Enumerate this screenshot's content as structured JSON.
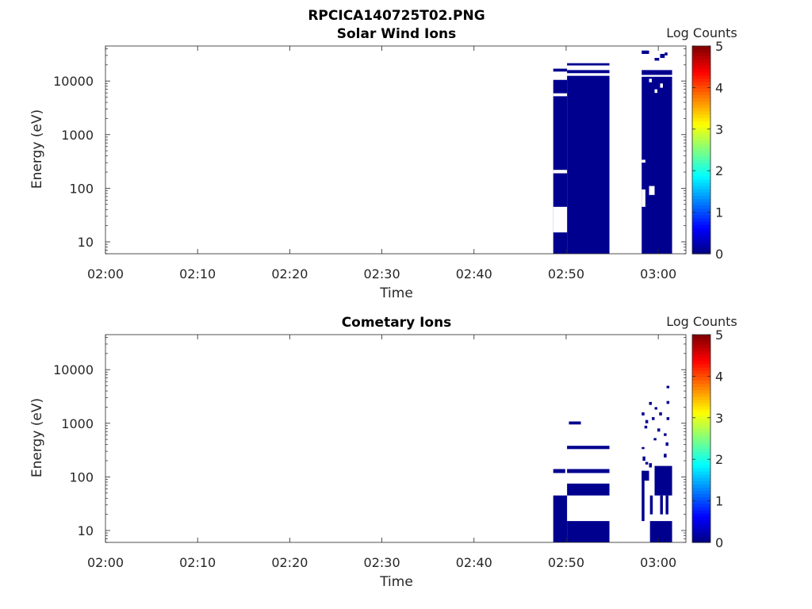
{
  "figure_title": "RPCICA140725T02.PNG",
  "chart_data": [
    {
      "type": "heatmap",
      "title": "Solar Wind Ions",
      "xlabel": "Time",
      "ylabel": "Energy (eV)",
      "x_ticks": [
        "02:00",
        "02:10",
        "02:20",
        "02:30",
        "02:40",
        "02:50",
        "03:00"
      ],
      "y_ticks": [
        "10",
        "100",
        "1000",
        "10000"
      ],
      "y_scale": "log",
      "ylim": [
        6,
        45000
      ],
      "xlim": [
        "02:00",
        "03:03"
      ],
      "colorbar": {
        "label": "Log Counts",
        "ticks": [
          "0",
          "1",
          "2",
          "3",
          "4",
          "5"
        ],
        "range": [
          0,
          5
        ],
        "colormap": "jet"
      },
      "data_color": "#00008f",
      "cells": [
        {
          "t_start": "02:48.6",
          "t_end": "02:50.1",
          "e_low": 6,
          "e_high": 10500
        },
        {
          "t_start": "02:50.1",
          "t_end": "02:54.7",
          "e_low": 6,
          "e_high": 12500
        },
        {
          "t_start": "02:48.6",
          "t_end": "02:50.1",
          "e_low": 15000,
          "e_high": 17000
        },
        {
          "t_start": "02:50.1",
          "t_end": "02:54.7",
          "e_low": 14000,
          "e_high": 16000
        },
        {
          "t_start": "02:50.1",
          "t_end": "02:54.7",
          "e_low": 19500,
          "e_high": 21500
        },
        {
          "t_start": "02:58.2",
          "t_end": "03:01.5",
          "e_low": 6,
          "e_high": 12000
        },
        {
          "t_start": "02:58.2",
          "t_end": "03:01.5",
          "e_low": 13000,
          "e_high": 16000
        },
        {
          "t_start": "02:58.2",
          "t_end": "02:59.0",
          "e_low": 32000,
          "e_high": 37000
        },
        {
          "t_start": "02:59.6",
          "t_end": "03:00.1",
          "e_low": 24000,
          "e_high": 27000
        },
        {
          "t_start": "03:00.2",
          "t_end": "03:00.7",
          "e_low": 27000,
          "e_high": 32000
        },
        {
          "t_start": "03:00.7",
          "t_end": "03:01.0",
          "e_low": 30000,
          "e_high": 34000
        }
      ],
      "gaps": [
        {
          "t_start": "02:48.6",
          "t_end": "02:50.1",
          "e_low": 5200,
          "e_high": 5900
        },
        {
          "t_start": "02:48.6",
          "t_end": "02:50.1",
          "e_low": 190,
          "e_high": 220
        },
        {
          "t_start": "02:48.6",
          "t_end": "02:50.1",
          "e_low": 15,
          "e_high": 45
        },
        {
          "t_start": "02:58.2",
          "t_end": "02:58.6",
          "e_low": 45,
          "e_high": 95
        },
        {
          "t_start": "02:58.2",
          "t_end": "02:58.6",
          "e_low": 300,
          "e_high": 340
        },
        {
          "t_start": "02:59.0",
          "t_end": "02:59.6",
          "e_low": 75,
          "e_high": 110
        },
        {
          "t_start": "02:59.6",
          "t_end": "02:59.9",
          "e_low": 6000,
          "e_high": 7000
        },
        {
          "t_start": "03:00.2",
          "t_end": "03:00.5",
          "e_low": 7500,
          "e_high": 9000
        },
        {
          "t_start": "02:59.0",
          "t_end": "02:59.3",
          "e_low": 9500,
          "e_high": 11000
        }
      ]
    },
    {
      "type": "heatmap",
      "title": "Cometary Ions",
      "xlabel": "Time",
      "ylabel": "Energy (eV)",
      "x_ticks": [
        "02:00",
        "02:10",
        "02:20",
        "02:30",
        "02:40",
        "02:50",
        "03:00"
      ],
      "y_ticks": [
        "10",
        "100",
        "1000",
        "10000"
      ],
      "y_scale": "log",
      "ylim": [
        6,
        45000
      ],
      "xlim": [
        "02:00",
        "03:03"
      ],
      "colorbar": {
        "label": "Log Counts",
        "ticks": [
          "0",
          "1",
          "2",
          "3",
          "4",
          "5"
        ],
        "range": [
          0,
          5
        ],
        "colormap": "jet"
      },
      "data_color": "#00008f",
      "cells": [
        {
          "t_start": "02:48.6",
          "t_end": "02:50.1",
          "e_low": 6,
          "e_high": 45
        },
        {
          "t_start": "02:50.1",
          "t_end": "02:54.7",
          "e_low": 6,
          "e_high": 15
        },
        {
          "t_start": "02:50.1",
          "t_end": "02:54.7",
          "e_low": 45,
          "e_high": 75
        },
        {
          "t_start": "02:48.6",
          "t_end": "02:49.9",
          "e_low": 118,
          "e_high": 140
        },
        {
          "t_start": "02:50.1",
          "t_end": "02:54.7",
          "e_low": 118,
          "e_high": 140
        },
        {
          "t_start": "02:50.1",
          "t_end": "02:54.7",
          "e_low": 330,
          "e_high": 380
        },
        {
          "t_start": "02:50.3",
          "t_end": "02:51.6",
          "e_low": 950,
          "e_high": 1080
        },
        {
          "t_start": "02:59.1",
          "t_end": "03:01.5",
          "e_low": 6,
          "e_high": 15
        },
        {
          "t_start": "02:58.2",
          "t_end": "02:58.5",
          "e_low": 15,
          "e_high": 130
        },
        {
          "t_start": "02:59.6",
          "t_end": "03:01.5",
          "e_low": 45,
          "e_high": 160
        },
        {
          "t_start": "02:58.2",
          "t_end": "02:59.0",
          "e_low": 85,
          "e_high": 130
        },
        {
          "t_start": "02:59.1",
          "t_end": "02:59.4",
          "e_low": 20,
          "e_high": 45
        },
        {
          "t_start": "03:00.2",
          "t_end": "03:00.5",
          "e_low": 20,
          "e_high": 45
        },
        {
          "t_start": "03:00.8",
          "t_end": "03:01.1",
          "e_low": 20,
          "e_high": 45
        },
        {
          "t_start": "02:58.3",
          "t_end": "02:58.6",
          "e_low": 200,
          "e_high": 240
        },
        {
          "t_start": "02:59.0",
          "t_end": "02:59.3",
          "e_low": 150,
          "e_high": 180
        },
        {
          "t_start": "03:00.6",
          "t_end": "03:00.9",
          "e_low": 230,
          "e_high": 270
        },
        {
          "t_start": "03:00.6",
          "t_end": "03:00.9",
          "e_low": 580,
          "e_high": 650
        },
        {
          "t_start": "02:59.9",
          "t_end": "03:00.2",
          "e_low": 700,
          "e_high": 800
        },
        {
          "t_start": "03:00.8",
          "t_end": "03:01.1",
          "e_low": 380,
          "e_high": 440
        },
        {
          "t_start": "03:00.9",
          "t_end": "03:01.2",
          "e_low": 1150,
          "e_high": 1300
        },
        {
          "t_start": "02:58.2",
          "t_end": "02:58.5",
          "e_low": 1400,
          "e_high": 1600
        },
        {
          "t_start": "02:58.6",
          "t_end": "02:58.9",
          "e_low": 1000,
          "e_high": 1150
        },
        {
          "t_start": "02:59.3",
          "t_end": "02:59.6",
          "e_low": 1150,
          "e_high": 1300
        },
        {
          "t_start": "02:59.6",
          "t_end": "02:59.9",
          "e_low": 1800,
          "e_high": 2000
        },
        {
          "t_start": "03:00.1",
          "t_end": "03:00.4",
          "e_low": 1400,
          "e_high": 1600
        },
        {
          "t_start": "03:00.9",
          "t_end": "03:01.2",
          "e_low": 2300,
          "e_high": 2600
        },
        {
          "t_start": "03:00.9",
          "t_end": "03:01.2",
          "e_low": 4500,
          "e_high": 5000
        },
        {
          "t_start": "02:59.0",
          "t_end": "02:59.3",
          "e_low": 2200,
          "e_high": 2500
        },
        {
          "t_start": "02:58.5",
          "t_end": "02:58.8",
          "e_low": 800,
          "e_high": 900
        },
        {
          "t_start": "02:59.5",
          "t_end": "02:59.8",
          "e_low": 480,
          "e_high": 530
        },
        {
          "t_start": "02:58.2",
          "t_end": "02:58.5",
          "e_low": 330,
          "e_high": 360
        },
        {
          "t_start": "02:58.6",
          "t_end": "02:58.9",
          "e_low": 170,
          "e_high": 190
        }
      ]
    }
  ]
}
